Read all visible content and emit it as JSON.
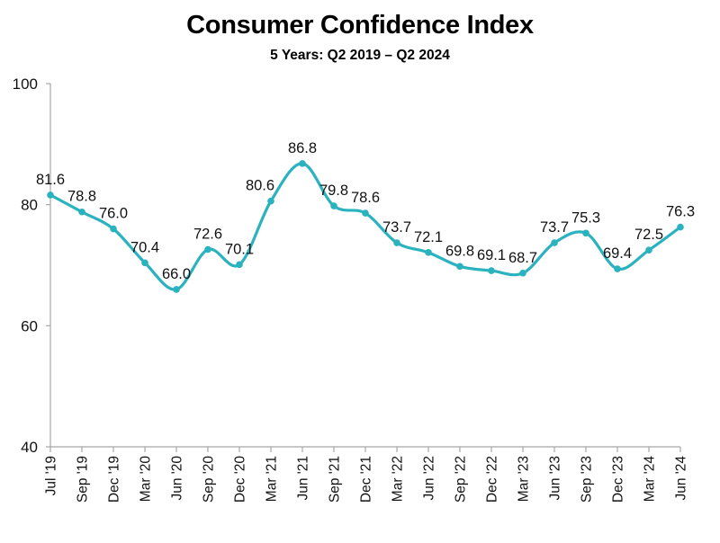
{
  "chart_data": {
    "type": "line",
    "title": "Consumer Confidence Index",
    "subtitle": "5 Years: Q2 2019 – Q2 2024",
    "xlabel": "",
    "ylabel": "",
    "categories": [
      "Jul '19",
      "Sep '19",
      "Dec '19",
      "Mar '20",
      "Jun '20",
      "Sep '20",
      "Dec '20",
      "Mar '21",
      "Jun '21",
      "Sep '21",
      "Dec '21",
      "Mar '22",
      "Jun '22",
      "Sep '22",
      "Dec '22",
      "Mar '23",
      "Jun '23",
      "Sep '23",
      "Dec '23",
      "Mar '24",
      "Jun '24"
    ],
    "series": [
      {
        "name": "Consumer Confidence Index",
        "values": [
          81.6,
          78.8,
          76.0,
          70.4,
          66.0,
          72.6,
          70.1,
          80.6,
          86.8,
          79.8,
          78.6,
          73.7,
          72.1,
          69.8,
          69.1,
          68.7,
          73.7,
          75.3,
          69.4,
          72.5,
          76.3
        ],
        "labels": [
          "81.6",
          "78.8",
          "76.0",
          "70.4",
          "66.0",
          "72.6",
          "70.1",
          "80.6",
          "86.8",
          "79.8",
          "78.6",
          "73.7",
          "72.1",
          "69.8",
          "69.1",
          "68.7",
          "73.7",
          "75.3",
          "69.4",
          "72.5",
          "76.3"
        ],
        "color": "#2AB3BF",
        "smoothed": true,
        "markers": true
      }
    ],
    "ylim": [
      40,
      100
    ],
    "yticks": [
      40,
      60,
      80,
      100
    ],
    "ytick_labels": [
      "40",
      "60",
      "80",
      "100"
    ],
    "grid": false,
    "legend": "none",
    "axis_color": "#A6A6A6"
  }
}
